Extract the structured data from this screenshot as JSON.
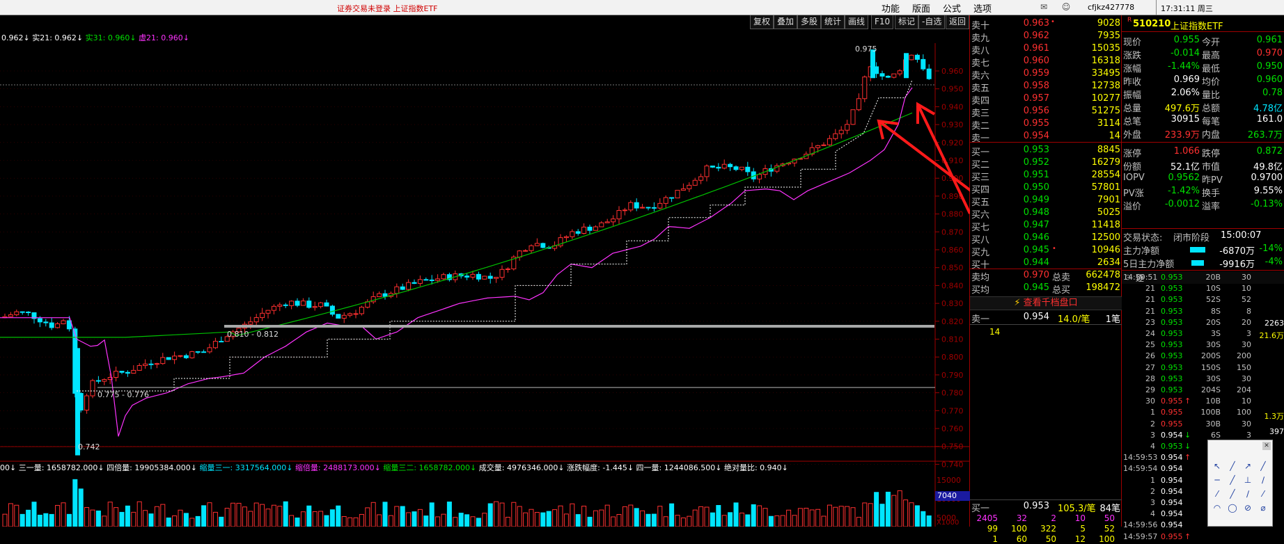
{
  "titlebar": {
    "title": "证券交易未登录  上证指数ETF",
    "menu": [
      "功能",
      "版面",
      "公式",
      "选项"
    ],
    "user": "cfjkz427778",
    "clock": "17:31:11 周三"
  },
  "toolbar": [
    "复权",
    "叠加",
    "多股",
    "统计",
    "画线",
    "F10",
    "标记",
    "-自选",
    "返回"
  ],
  "ma_header": [
    {
      "text": "0.962↓",
      "color": "#ffffff"
    },
    {
      "text": "实21: 0.962↓",
      "color": "#ffffff"
    },
    {
      "text": "实31: 0.960↓",
      "color": "#00e000"
    },
    {
      "text": "虚21: 0.960↓",
      "color": "#ff33ff"
    }
  ],
  "price_axis": [
    "0.960",
    "0.950",
    "0.940",
    "0.930",
    "0.920",
    "0.910",
    "0.900",
    "0.890",
    "0.880",
    "0.870",
    "0.860",
    "0.850",
    "0.840",
    "0.830",
    "0.820",
    "0.810",
    "0.800",
    "0.790",
    "0.780",
    "0.770",
    "0.760",
    "0.750",
    "0.740"
  ],
  "chart_labels": {
    "high": "0.975",
    "low": "0.742",
    "range1": "0.810 - 0.812",
    "range2": "0.775 - 0.776"
  },
  "vol_header": [
    {
      "text": "00↓",
      "color": "#ffffff"
    },
    {
      "text": "三一量: 1658782.000↓",
      "color": "#ffffff"
    },
    {
      "text": "四倍量: 19905384.000↓",
      "color": "#ffffff"
    },
    {
      "text": "缩量三一: 3317564.000↓",
      "color": "#00e5ff"
    },
    {
      "text": "缩倍量: 2488173.000↓",
      "color": "#ff33ff"
    },
    {
      "text": "缩量三二: 1658782.000↓",
      "color": "#00e000"
    },
    {
      "text": "成交量: 4976346.000↓",
      "color": "#ffffff"
    },
    {
      "text": "涨跌幅度: -1.445↓",
      "color": "#ffffff"
    },
    {
      "text": "四一量: 1244086.500↓",
      "color": "#ffffff"
    },
    {
      "text": "绝对量比: 0.940↓",
      "color": "#ffffff"
    }
  ],
  "vol_axis": [
    "15000",
    "10000",
    "5000",
    "X1000"
  ],
  "vol_tag": "7040",
  "asks": [
    {
      "label": "卖十",
      "price": "0.963",
      "vol": "9028",
      "mark": "•"
    },
    {
      "label": "卖九",
      "price": "0.962",
      "vol": "7935",
      "mark": ""
    },
    {
      "label": "卖八",
      "price": "0.961",
      "vol": "15035",
      "mark": ""
    },
    {
      "label": "卖七",
      "price": "0.960",
      "vol": "16318",
      "mark": ""
    },
    {
      "label": "卖六",
      "price": "0.959",
      "vol": "33495",
      "mark": ""
    },
    {
      "label": "卖五",
      "price": "0.958",
      "vol": "12738",
      "mark": ""
    },
    {
      "label": "卖四",
      "price": "0.957",
      "vol": "10277",
      "mark": ""
    },
    {
      "label": "卖三",
      "price": "0.956",
      "vol": "51275",
      "mark": ""
    },
    {
      "label": "卖二",
      "price": "0.955",
      "vol": "3114",
      "mark": ""
    },
    {
      "label": "卖一",
      "price": "0.954",
      "vol": "14",
      "mark": ""
    }
  ],
  "bids": [
    {
      "label": "买一",
      "price": "0.953",
      "vol": "8845",
      "mark": ""
    },
    {
      "label": "买二",
      "price": "0.952",
      "vol": "16279",
      "mark": ""
    },
    {
      "label": "买三",
      "price": "0.951",
      "vol": "28554",
      "mark": ""
    },
    {
      "label": "买四",
      "price": "0.950",
      "vol": "57801",
      "mark": ""
    },
    {
      "label": "买五",
      "price": "0.949",
      "vol": "7901",
      "mark": ""
    },
    {
      "label": "买六",
      "price": "0.948",
      "vol": "5025",
      "mark": ""
    },
    {
      "label": "买七",
      "price": "0.947",
      "vol": "11418",
      "mark": ""
    },
    {
      "label": "买八",
      "price": "0.946",
      "vol": "12500",
      "mark": ""
    },
    {
      "label": "买九",
      "price": "0.945",
      "vol": "10946",
      "mark": "•"
    },
    {
      "label": "买十",
      "price": "0.944",
      "vol": "2634",
      "mark": ""
    }
  ],
  "avg": [
    {
      "label": "卖均",
      "price": "0.970",
      "tlabel": "总卖",
      "vol": "662478"
    },
    {
      "label": "买均",
      "price": "0.945",
      "tlabel": "总买",
      "vol": "198472"
    }
  ],
  "view_1000": "查看千档盘口",
  "ask1_row": {
    "label": "卖一",
    "price": "0.954",
    "vol": "14.0/笔",
    "count": "1笔",
    "detail": "14"
  },
  "bid1_row": {
    "label": "买一",
    "price": "0.953",
    "vol": "105.3/笔",
    "count": "84笔",
    "nums1": [
      "2405",
      "32",
      "2",
      "10",
      "50"
    ],
    "nums2": [
      "99",
      "100",
      "322",
      "5",
      "52"
    ],
    "nums3": [
      "1",
      "60",
      "50",
      "12",
      "100"
    ]
  },
  "quote": {
    "flag": "R",
    "code": "510210",
    "name": "上证指数ETF"
  },
  "info_rows": [
    [
      {
        "t": "现价",
        "c": "#c0c0c0"
      },
      {
        "t": "0.955",
        "c": "#00e000"
      },
      {
        "t": "今开",
        "c": "#c0c0c0"
      },
      {
        "t": "0.961",
        "c": "#00e000"
      }
    ],
    [
      {
        "t": "涨跌",
        "c": "#c0c0c0"
      },
      {
        "t": "-0.014",
        "c": "#00e000"
      },
      {
        "t": "最高",
        "c": "#c0c0c0"
      },
      {
        "t": "0.970",
        "c": "#ff3030"
      }
    ],
    [
      {
        "t": "涨幅",
        "c": "#c0c0c0"
      },
      {
        "t": "-1.44%",
        "c": "#00e000"
      },
      {
        "t": "最低",
        "c": "#c0c0c0"
      },
      {
        "t": "0.950",
        "c": "#00e000"
      }
    ],
    [
      {
        "t": "昨收",
        "c": "#c0c0c0"
      },
      {
        "t": "0.969",
        "c": "#ffffff"
      },
      {
        "t": "均价",
        "c": "#c0c0c0"
      },
      {
        "t": "0.960",
        "c": "#00e000"
      }
    ],
    [
      {
        "t": "振幅",
        "c": "#c0c0c0"
      },
      {
        "t": "2.06%",
        "c": "#ffffff"
      },
      {
        "t": "量比",
        "c": "#c0c0c0"
      },
      {
        "t": "0.78",
        "c": "#00e000"
      }
    ],
    [
      {
        "t": "总量",
        "c": "#c0c0c0"
      },
      {
        "t": "497.6万",
        "c": "#ffff00"
      },
      {
        "t": "总额",
        "c": "#c0c0c0"
      },
      {
        "t": "4.78亿",
        "c": "#00e5ff"
      }
    ],
    [
      {
        "t": "总笔",
        "c": "#c0c0c0"
      },
      {
        "t": "30915",
        "c": "#ffffff"
      },
      {
        "t": "每笔",
        "c": "#c0c0c0"
      },
      {
        "t": "161.0",
        "c": "#ffffff"
      }
    ],
    [
      {
        "t": "外盘",
        "c": "#c0c0c0"
      },
      {
        "t": "233.9万",
        "c": "#ff3030"
      },
      {
        "t": "内盘",
        "c": "#c0c0c0"
      },
      {
        "t": "263.7万",
        "c": "#00e000"
      }
    ],
    [
      {
        "t": "涨停",
        "c": "#c0c0c0"
      },
      {
        "t": "1.066",
        "c": "#ff3030"
      },
      {
        "t": "跌停",
        "c": "#c0c0c0"
      },
      {
        "t": "0.872",
        "c": "#00e000"
      }
    ],
    [
      {
        "t": "份额",
        "c": "#c0c0c0"
      },
      {
        "t": "52.1亿",
        "c": "#ffffff"
      },
      {
        "t": "市值",
        "c": "#c0c0c0"
      },
      {
        "t": "49.8亿",
        "c": "#ffffff"
      }
    ],
    [
      {
        "t": "IOPV",
        "c": "#c0c0c0"
      },
      {
        "t": "0.9562",
        "c": "#00e000"
      },
      {
        "t": "昨PV",
        "c": "#c0c0c0"
      },
      {
        "t": "0.9700",
        "c": "#ffffff"
      }
    ],
    [
      {
        "t": "PV涨",
        "c": "#c0c0c0"
      },
      {
        "t": "-1.42%",
        "c": "#00e000"
      },
      {
        "t": "换手",
        "c": "#c0c0c0"
      },
      {
        "t": "9.55%",
        "c": "#ffffff"
      }
    ],
    [
      {
        "t": "溢价",
        "c": "#c0c0c0"
      },
      {
        "t": "-0.0012",
        "c": "#00e000"
      },
      {
        "t": "溢率",
        "c": "#c0c0c0"
      },
      {
        "t": "-0.13%",
        "c": "#00e000"
      }
    ]
  ],
  "status": {
    "label": "交易状态:",
    "state": "闭市阶段",
    "time": "15:00:07"
  },
  "flow": [
    {
      "label": "主力净额",
      "value": "-6870万",
      "pct": "-14%",
      "fill": 0.55
    },
    {
      "label": "5日主力净额",
      "value": "-9916万",
      "pct": "-4%",
      "fill": 0.45
    }
  ],
  "ticks_header": "逐",
  "ticks": [
    {
      "time": "14:59:51",
      "px": "0.953",
      "vol": "20B",
      "n": "30",
      "arrow": ""
    },
    {
      "time": "21",
      "px": "0.953",
      "vol": "10S",
      "n": "10",
      "arrow": ""
    },
    {
      "time": "21",
      "px": "0.953",
      "vol": "52S",
      "n": "52",
      "arrow": ""
    },
    {
      "time": "21",
      "px": "0.953",
      "vol": "8S",
      "n": "8",
      "arrow": ""
    },
    {
      "time": "23",
      "px": "0.953",
      "vol": "20S",
      "n": "20",
      "arrow": ""
    },
    {
      "time": "24",
      "px": "0.953",
      "vol": "3S",
      "n": "3",
      "arrow": ""
    },
    {
      "time": "25",
      "px": "0.953",
      "vol": "30S",
      "n": "30",
      "arrow": ""
    },
    {
      "time": "26",
      "px": "0.953",
      "vol": "200S",
      "n": "200",
      "arrow": ""
    },
    {
      "time": "27",
      "px": "0.953",
      "vol": "150S",
      "n": "150",
      "arrow": ""
    },
    {
      "time": "28",
      "px": "0.953",
      "vol": "30S",
      "n": "30",
      "arrow": ""
    },
    {
      "time": "29",
      "px": "0.953",
      "vol": "204S",
      "n": "204",
      "arrow": ""
    },
    {
      "time": "30",
      "px": "0.955",
      "vol": "10B",
      "n": "10",
      "arrow": "↑"
    },
    {
      "time": "1",
      "px": "0.955",
      "vol": "100B",
      "n": "100",
      "arrow": ""
    },
    {
      "time": "2",
      "px": "0.955",
      "vol": "30B",
      "n": "30",
      "arrow": ""
    },
    {
      "time": "3",
      "px": "0.954",
      "vol": "6S",
      "n": "3",
      "arrow": "↓"
    },
    {
      "time": "4",
      "px": "0.953",
      "vol": "",
      "n": "",
      "arrow": "↓"
    },
    {
      "time": "14:59:53",
      "px": "0.954",
      "vol": "",
      "n": "",
      "arrow": "↑"
    },
    {
      "time": "14:59:54",
      "px": "0.954",
      "vol": "",
      "n": "",
      "arrow": ""
    },
    {
      "time": "1",
      "px": "0.954",
      "vol": "",
      "n": "",
      "arrow": ""
    },
    {
      "time": "2",
      "px": "0.954",
      "vol": "",
      "n": "",
      "arrow": ""
    },
    {
      "time": "3",
      "px": "0.954",
      "vol": "",
      "n": "",
      "arrow": ""
    },
    {
      "time": "4",
      "px": "0.954",
      "vol": "",
      "n": "",
      "arrow": ""
    },
    {
      "time": "14:59:56",
      "px": "0.954",
      "vol": "",
      "n": "",
      "arrow": ""
    },
    {
      "time": "14:59:57",
      "px": "0.955",
      "vol": "",
      "n": "",
      "arrow": "↑"
    }
  ],
  "side_values": [
    "2263",
    "21.6万",
    "1.3万",
    "397"
  ],
  "colors": {
    "up": "#ff3030",
    "down": "#00e5ff",
    "ma_magenta": "#ff33ff",
    "ma_green": "#00c000",
    "arrow": "#ff1a1a"
  }
}
